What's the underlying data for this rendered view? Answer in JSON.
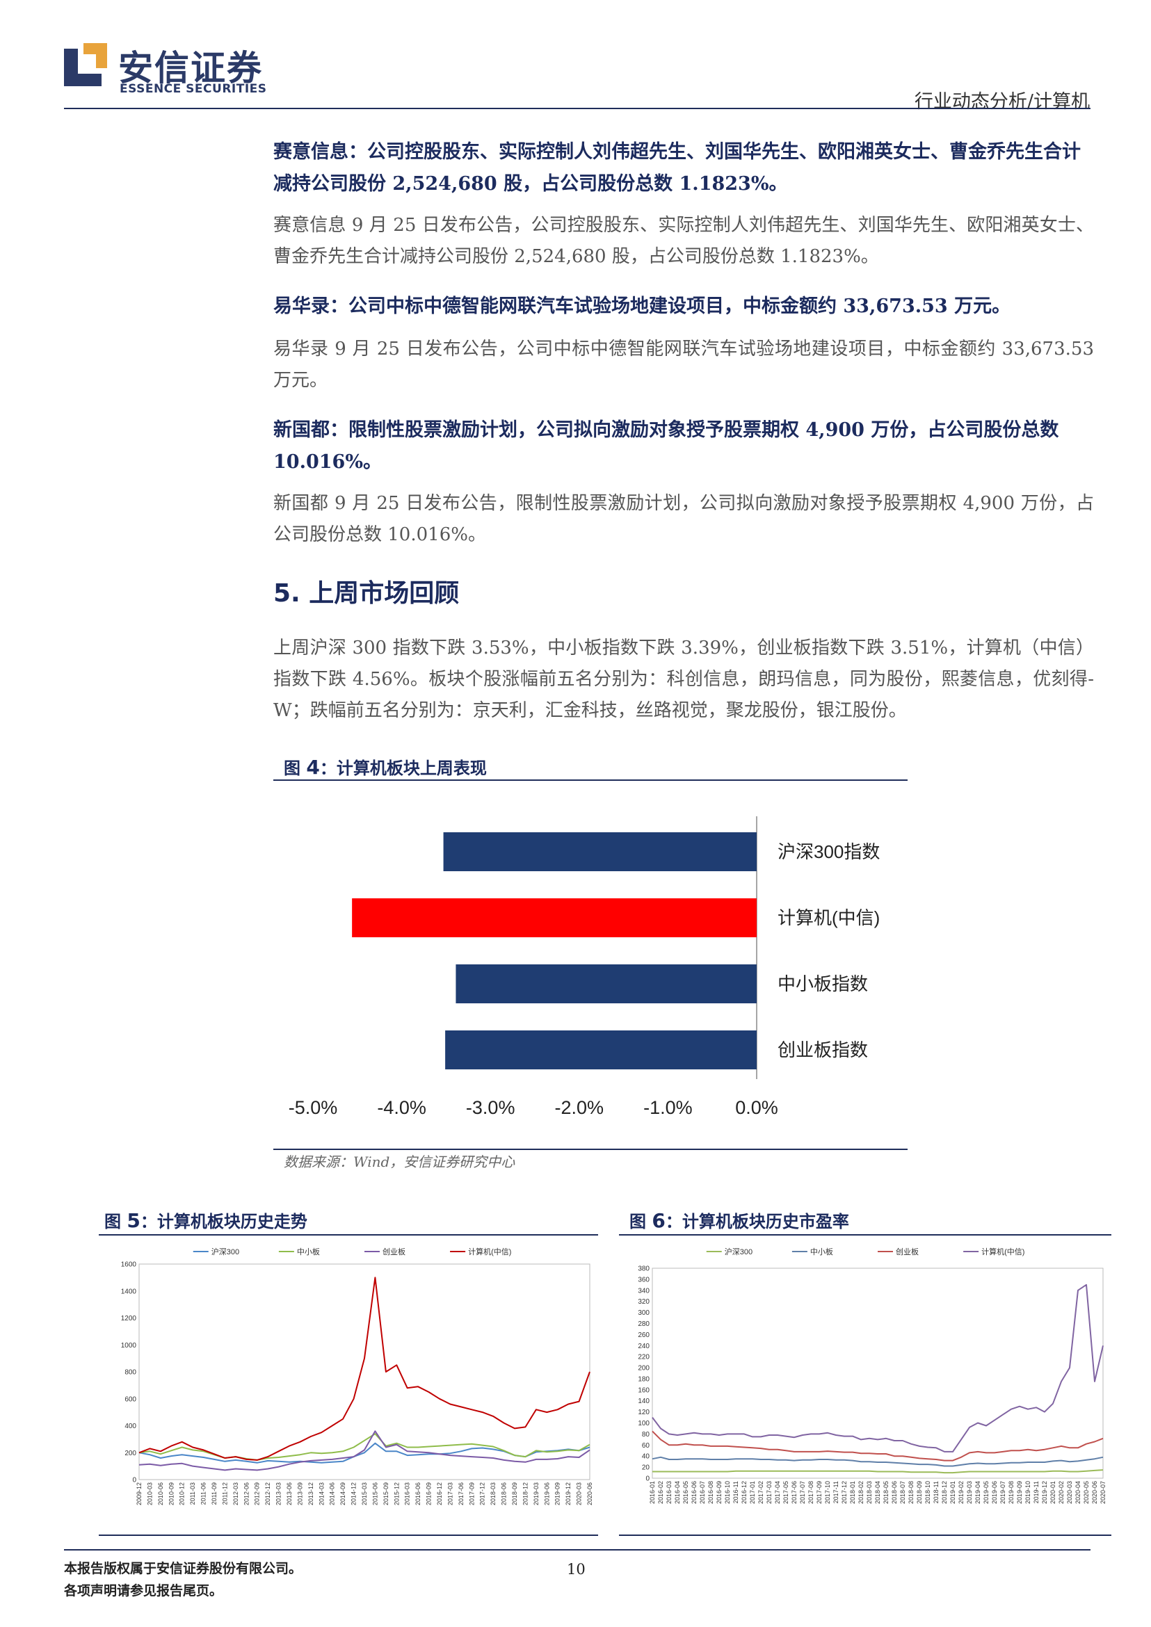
{
  "header": {
    "logo_cn": "安信证券",
    "logo_en": "ESSENCE SECURITIES",
    "doc_type": "行业动态分析/计算机",
    "brand_color": "#2b3a67",
    "accent_color": "#e8a33b"
  },
  "news": [
    {
      "headline": "赛意信息：公司控股股东、实际控制人刘伟超先生、刘国华先生、欧阳湘英女士、曹金乔先生合计减持公司股份 2,524,680 股，占公司股份总数 1.1823%。",
      "body": "赛意信息 9 月 25 日发布公告，公司控股股东、实际控制人刘伟超先生、刘国华先生、欧阳湘英女士、曹金乔先生合计减持公司股份 2,524,680 股，占公司股份总数 1.1823%。"
    },
    {
      "headline": "易华录：公司中标中德智能网联汽车试验场地建设项目，中标金额约 33,673.53 万元。",
      "body": "易华录 9 月 25 日发布公告，公司中标中德智能网联汽车试验场地建设项目，中标金额约 33,673.53 万元。"
    },
    {
      "headline": "新国都：限制性股票激励计划，公司拟向激励对象授予股票期权 4,900 万份，占公司股份总数 10.016%。",
      "body": "新国都 9 月 25 日发布公告，限制性股票激励计划，公司拟向激励对象授予股票期权 4,900 万份，占公司股份总数 10.016%。"
    }
  ],
  "section": {
    "title": "5. 上周市场回顾",
    "body": "上周沪深 300 指数下跌 3.53%，中小板指数下跌 3.39%，创业板指数下跌 3.51%，计算机（中信）指数下跌 4.56%。板块个股涨幅前五名分别为：科创信息，朗玛信息，同为股份，熙菱信息，优刻得-W；跌幅前五名分别为：京天利，汇金科技，丝路视觉，聚龙股份，银江股份。"
  },
  "figures": {
    "fig4": {
      "prefix": "图",
      "num": "4",
      "title": "：计算机板块上周表现",
      "source": "数据来源：Wind，安信证券研究中心"
    },
    "fig5": {
      "prefix": "图",
      "num": "5",
      "title": "：计算机板块历史走势"
    },
    "fig6": {
      "prefix": "图",
      "num": "6",
      "title": "：计算机板块历史市盈率"
    }
  },
  "chart_data": [
    {
      "type": "bar",
      "orientation": "horizontal",
      "categories": [
        "沪深300指数",
        "计算机(中信)",
        "中小板指数",
        "创业板指数"
      ],
      "values": [
        -3.53,
        -4.56,
        -3.39,
        -3.51
      ],
      "colors": [
        "#1f3d72",
        "#ff0000",
        "#1f3d72",
        "#1f3d72"
      ],
      "xlim": [
        -5.0,
        0.0
      ],
      "x_ticks": [
        "-5.0%",
        "-4.0%",
        "-3.0%",
        "-2.0%",
        "-1.0%",
        "0.0%"
      ],
      "grid": false
    },
    {
      "type": "line",
      "legend": [
        "沪深300",
        "中小板",
        "创业板",
        "计算机(中信)"
      ],
      "colors": [
        "#4a86c8",
        "#8fbc4a",
        "#7b5aa6",
        "#c00000"
      ],
      "ylim": [
        0,
        1600
      ],
      "y_ticks": [
        "0",
        "200",
        "400",
        "600",
        "800",
        "1000",
        "1200",
        "1400",
        "1600"
      ],
      "x_ticks": [
        "2009-12",
        "2010-03",
        "2010-06",
        "2010-09",
        "2010-12",
        "2011-03",
        "2011-06",
        "2011-09",
        "2011-12",
        "2012-03",
        "2012-06",
        "2012-09",
        "2012-12",
        "2013-03",
        "2013-06",
        "2013-09",
        "2013-12",
        "2014-03",
        "2014-06",
        "2014-09",
        "2014-12",
        "2015-03",
        "2015-06",
        "2015-09",
        "2015-12",
        "2016-03",
        "2016-06",
        "2016-09",
        "2016-12",
        "2017-03",
        "2017-06",
        "2017-09",
        "2017-12",
        "2018-03",
        "2018-06",
        "2018-09",
        "2018-12",
        "2019-03",
        "2019-06",
        "2019-09",
        "2019-12",
        "2020-03",
        "2020-06"
      ],
      "series": [
        {
          "name": "沪深300",
          "values": [
            200,
            185,
            160,
            175,
            185,
            175,
            165,
            150,
            135,
            145,
            135,
            125,
            140,
            135,
            130,
            135,
            130,
            125,
            130,
            135,
            170,
            200,
            270,
            210,
            210,
            180,
            185,
            190,
            190,
            195,
            210,
            230,
            235,
            225,
            210,
            180,
            170,
            205,
            210,
            215,
            225,
            215,
            240
          ]
        },
        {
          "name": "中小板",
          "values": [
            200,
            210,
            190,
            215,
            240,
            220,
            210,
            185,
            160,
            170,
            155,
            145,
            160,
            165,
            175,
            185,
            200,
            195,
            200,
            210,
            240,
            290,
            340,
            250,
            270,
            240,
            240,
            245,
            250,
            255,
            260,
            265,
            255,
            245,
            215,
            180,
            170,
            215,
            205,
            210,
            220,
            215,
            260
          ]
        },
        {
          "name": "创业板",
          "values": [
            110,
            115,
            105,
            115,
            120,
            100,
            90,
            80,
            70,
            80,
            75,
            70,
            80,
            95,
            115,
            130,
            140,
            145,
            150,
            160,
            170,
            220,
            360,
            240,
            260,
            210,
            205,
            200,
            190,
            180,
            175,
            170,
            165,
            160,
            145,
            135,
            130,
            150,
            150,
            155,
            170,
            165,
            220
          ]
        },
        {
          "name": "计算机(中信)",
          "values": [
            200,
            230,
            210,
            250,
            280,
            240,
            220,
            190,
            160,
            170,
            150,
            145,
            170,
            210,
            250,
            280,
            320,
            350,
            400,
            450,
            600,
            900,
            1500,
            800,
            850,
            680,
            690,
            650,
            600,
            560,
            540,
            520,
            500,
            470,
            420,
            380,
            390,
            520,
            500,
            520,
            560,
            580,
            800
          ]
        }
      ]
    },
    {
      "type": "line",
      "legend": [
        "沪深300",
        "中小板",
        "创业板",
        "计算机(中信)"
      ],
      "colors": [
        "#9bbb59",
        "#5f7fa8",
        "#c0504d",
        "#8064a2"
      ],
      "ylim": [
        0,
        380
      ],
      "y_ticks": [
        "0",
        "20",
        "40",
        "60",
        "80",
        "100",
        "120",
        "140",
        "160",
        "180",
        "200",
        "220",
        "240",
        "260",
        "280",
        "300",
        "320",
        "340",
        "360",
        "380"
      ],
      "x_ticks": [
        "2016-01",
        "2016-02",
        "2016-03",
        "2016-04",
        "2016-05",
        "2016-06",
        "2016-07",
        "2016-08",
        "2016-09",
        "2016-10",
        "2016-11",
        "2016-12",
        "2017-01",
        "2017-02",
        "2017-03",
        "2017-04",
        "2017-05",
        "2017-06",
        "2017-07",
        "2017-08",
        "2017-09",
        "2017-10",
        "2017-11",
        "2017-12",
        "2018-01",
        "2018-02",
        "2018-03",
        "2018-04",
        "2018-05",
        "2018-06",
        "2018-07",
        "2018-08",
        "2018-09",
        "2018-10",
        "2018-11",
        "2018-12",
        "2019-01",
        "2019-02",
        "2019-03",
        "2019-04",
        "2019-05",
        "2019-06",
        "2019-07",
        "2019-08",
        "2019-09",
        "2019-10",
        "2019-11",
        "2019-12",
        "2020-01",
        "2020-02",
        "2020-03",
        "2020-04",
        "2020-05",
        "2020-06",
        "2020-07"
      ],
      "series": [
        {
          "name": "沪深300",
          "values": [
            12,
            12,
            12,
            12,
            12,
            12,
            12,
            12,
            12,
            12,
            13,
            13,
            13,
            13,
            13,
            13,
            13,
            13,
            13,
            13,
            13,
            13,
            13,
            13,
            13,
            13,
            13,
            12,
            12,
            12,
            12,
            11,
            11,
            11,
            11,
            10,
            10,
            11,
            12,
            12,
            12,
            12,
            12,
            12,
            12,
            12,
            12,
            12,
            13,
            13,
            12,
            12,
            13,
            14,
            15
          ]
        },
        {
          "name": "中小板",
          "values": [
            35,
            38,
            34,
            34,
            35,
            35,
            35,
            34,
            34,
            34,
            35,
            35,
            35,
            34,
            34,
            33,
            33,
            32,
            33,
            33,
            34,
            34,
            33,
            33,
            32,
            30,
            30,
            29,
            29,
            28,
            27,
            26,
            25,
            25,
            24,
            22,
            22,
            24,
            26,
            27,
            26,
            26,
            27,
            28,
            28,
            29,
            29,
            29,
            31,
            32,
            30,
            31,
            33,
            35,
            38
          ]
        },
        {
          "name": "创业板",
          "values": [
            85,
            70,
            60,
            60,
            62,
            60,
            60,
            58,
            58,
            58,
            57,
            56,
            55,
            54,
            52,
            52,
            50,
            48,
            48,
            48,
            48,
            49,
            48,
            47,
            47,
            45,
            45,
            44,
            44,
            40,
            40,
            38,
            36,
            35,
            34,
            32,
            32,
            38,
            46,
            48,
            46,
            46,
            48,
            50,
            50,
            52,
            50,
            52,
            55,
            58,
            55,
            55,
            62,
            66,
            72
          ]
        },
        {
          "name": "计算机(中信)",
          "values": [
            110,
            90,
            80,
            78,
            80,
            82,
            80,
            80,
            78,
            80,
            80,
            80,
            75,
            75,
            78,
            78,
            76,
            74,
            78,
            80,
            80,
            82,
            78,
            76,
            76,
            70,
            72,
            70,
            72,
            68,
            68,
            62,
            58,
            56,
            55,
            48,
            48,
            70,
            92,
            100,
            95,
            105,
            115,
            125,
            130,
            125,
            128,
            120,
            135,
            175,
            200,
            340,
            350,
            175,
            240
          ]
        }
      ]
    }
  ],
  "footer": {
    "line1": "本报告版权属于安信证券股份有限公司。",
    "line2": "各项声明请参见报告尾页。",
    "page": "10"
  }
}
